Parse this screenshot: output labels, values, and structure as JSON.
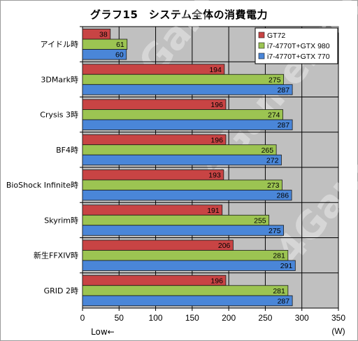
{
  "chart_data": {
    "type": "bar",
    "orientation": "horizontal",
    "title": "グラフ15　システム全体の消費電力",
    "categories": [
      "アイドル時",
      "3DMark時",
      "Crysis 3時",
      "BF4時",
      "BioShock Infinite時",
      "Skyrim時",
      "新生FFXIV時",
      "GRID 2時"
    ],
    "series": [
      {
        "name": "GT72",
        "color": "#c84444",
        "values": [
          38,
          194,
          196,
          196,
          193,
          191,
          206,
          196
        ]
      },
      {
        "name": "i7-4770T+GTX 980",
        "color": "#9cc452",
        "values": [
          61,
          275,
          274,
          265,
          273,
          255,
          281,
          281
        ]
      },
      {
        "name": "i7-4770T+GTX 770",
        "color": "#4a86d8",
        "values": [
          60,
          287,
          287,
          272,
          286,
          275,
          291,
          287
        ]
      }
    ],
    "xlim": [
      0,
      350
    ],
    "xticks": [
      0,
      50,
      100,
      150,
      200,
      250,
      300,
      350
    ],
    "xlabel": "(W)",
    "annotation": "Low←",
    "grid": true,
    "legend_position": "top-right",
    "watermark": "4Gamer.net"
  }
}
